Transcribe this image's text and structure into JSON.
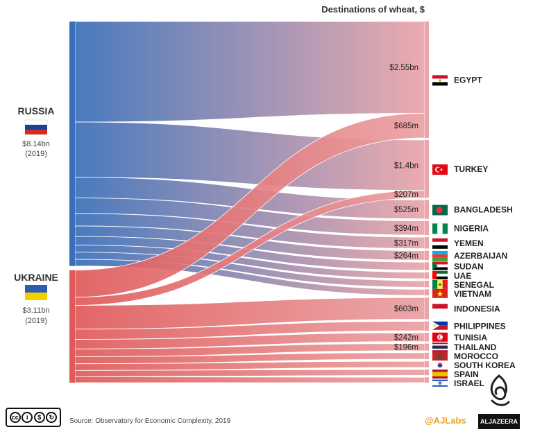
{
  "title": "Destinations of wheat, $",
  "exporters": [
    {
      "name": "RUSSIA",
      "value": "$8.14bn",
      "year": "(2019)",
      "color": "#3a6fb8"
    },
    {
      "name": "UKRAINE",
      "value": "$3.11bn",
      "year": "(2019)",
      "color": "#e05a5a"
    }
  ],
  "chart_data": {
    "type": "sankey",
    "title": "Destinations of wheat, $",
    "units": "USD",
    "sources": [
      {
        "name": "RUSSIA",
        "total": "$8.14bn",
        "year": "(2019)"
      },
      {
        "name": "UKRAINE",
        "total": "$3.11bn",
        "year": "(2019)"
      }
    ],
    "destinations": [
      {
        "name": "EGYPT",
        "flag": "egypt-flag"
      },
      {
        "name": "TURKEY",
        "flag": "turkey-flag"
      },
      {
        "name": "BANGLADESH",
        "flag": "bangladesh-flag"
      },
      {
        "name": "NIGERIA",
        "flag": "nigeria-flag"
      },
      {
        "name": "YEMEN",
        "flag": "yemen-flag"
      },
      {
        "name": "AZERBAIJAN",
        "flag": "azerbaijan-flag"
      },
      {
        "name": "SUDAN",
        "flag": "sudan-flag"
      },
      {
        "name": "UAE",
        "flag": "uae-flag"
      },
      {
        "name": "SENEGAL",
        "flag": "senegal-flag"
      },
      {
        "name": "VIETNAM",
        "flag": "vietnam-flag"
      },
      {
        "name": "INDONESIA",
        "flag": "indonesia-flag"
      },
      {
        "name": "PHILIPPINES",
        "flag": "philippines-flag"
      },
      {
        "name": "TUNISIA",
        "flag": "tunisia-flag"
      },
      {
        "name": "THAILAND",
        "flag": "thailand-flag"
      },
      {
        "name": "MOROCCO",
        "flag": "morocco-flag"
      },
      {
        "name": "SOUTH KOREA",
        "flag": "south-korea-flag"
      },
      {
        "name": "SPAIN",
        "flag": "spain-flag"
      },
      {
        "name": "ISRAEL",
        "flag": "israel-flag"
      }
    ],
    "flows": [
      {
        "source": "RUSSIA",
        "target": "EGYPT",
        "value": 2.55,
        "label": "$2.55bn"
      },
      {
        "source": "UKRAINE",
        "target": "EGYPT",
        "value": 0.685,
        "label": "$685m"
      },
      {
        "source": "RUSSIA",
        "target": "TURKEY",
        "value": 1.4,
        "label": "$1.4bn"
      },
      {
        "source": "UKRAINE",
        "target": "TURKEY",
        "value": 0.207,
        "label": "$207m"
      },
      {
        "source": "RUSSIA",
        "target": "BANGLADESH",
        "value": 0.525,
        "label": "$525m"
      },
      {
        "source": "RUSSIA",
        "target": "NIGERIA",
        "value": 0.394,
        "label": "$394m"
      },
      {
        "source": "RUSSIA",
        "target": "YEMEN",
        "value": 0.317,
        "label": "$317m"
      },
      {
        "source": "RUSSIA",
        "target": "AZERBAIJAN",
        "value": 0.264,
        "label": "$264m"
      },
      {
        "source": "RUSSIA",
        "target": "SUDAN",
        "value": 0.22,
        "label": ""
      },
      {
        "source": "RUSSIA",
        "target": "UAE",
        "value": 0.18,
        "label": ""
      },
      {
        "source": "RUSSIA",
        "target": "SENEGAL",
        "value": 0.18,
        "label": ""
      },
      {
        "source": "RUSSIA",
        "target": "VIETNAM",
        "value": 0.17,
        "label": ""
      },
      {
        "source": "UKRAINE",
        "target": "INDONESIA",
        "value": 0.603,
        "label": "$603m"
      },
      {
        "source": "UKRAINE",
        "target": "PHILIPPINES",
        "value": 0.26,
        "label": ""
      },
      {
        "source": "UKRAINE",
        "target": "TUNISIA",
        "value": 0.242,
        "label": "$242m"
      },
      {
        "source": "UKRAINE",
        "target": "THAILAND",
        "value": 0.196,
        "label": "$196m"
      },
      {
        "source": "UKRAINE",
        "target": "MOROCCO",
        "value": 0.18,
        "label": ""
      },
      {
        "source": "UKRAINE",
        "target": "SOUTH KOREA",
        "value": 0.17,
        "label": ""
      },
      {
        "source": "UKRAINE",
        "target": "SPAIN",
        "value": 0.16,
        "label": ""
      },
      {
        "source": "UKRAINE",
        "target": "ISRAEL",
        "value": 0.15,
        "label": ""
      }
    ]
  },
  "colors": {
    "russia": "#3a6fb8",
    "ukraine": "#e05a5a",
    "dest": "#e8a0a4",
    "ajlabs": "#f0a21a"
  },
  "footer": {
    "source": "Source: Observatory for Economic Complexity, 2019",
    "handle": "@AJLabs",
    "brand": "ALJAZEERA",
    "license_badges": [
      "cc",
      "BY",
      "NC",
      "SA"
    ]
  }
}
